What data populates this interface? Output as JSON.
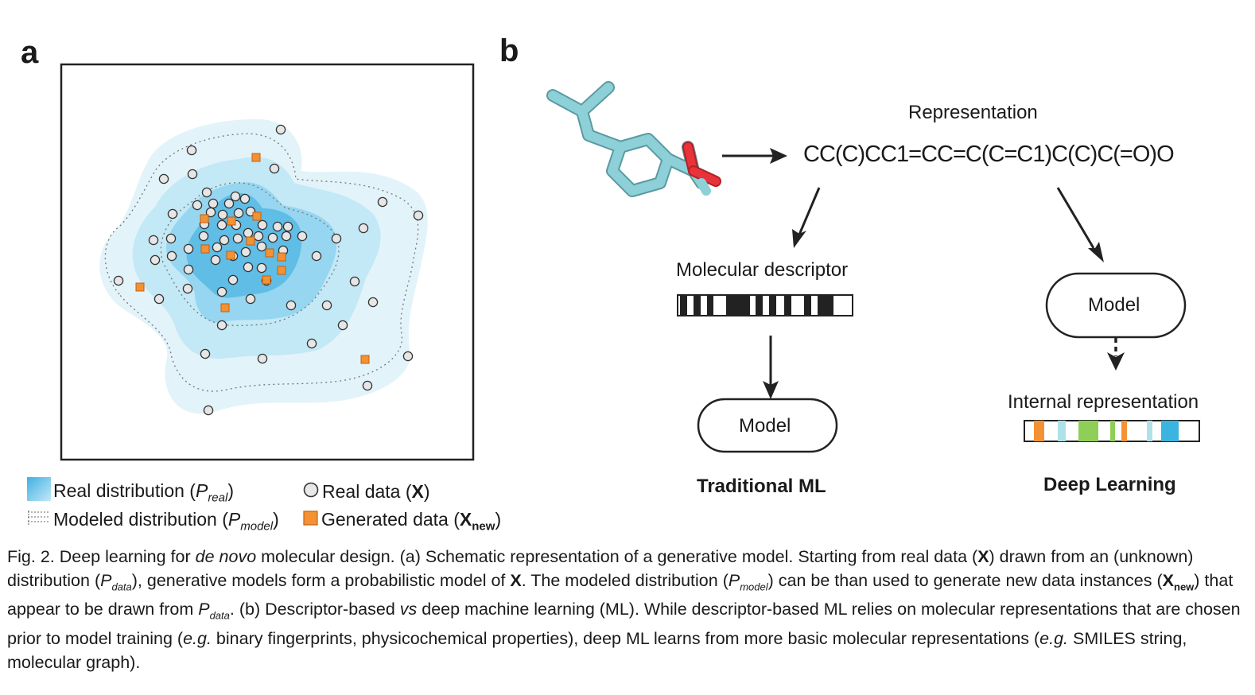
{
  "panel_a": {
    "label": "a",
    "legend": {
      "real_dist": {
        "prefix": "Real distribution (",
        "var": "P",
        "sub": "real",
        "suffix": ")"
      },
      "real_data": {
        "prefix": "Real data (",
        "bold": "X",
        "suffix": ")"
      },
      "model_dist": {
        "prefix": "Modeled distribution (",
        "var": "P",
        "sub": "model",
        "suffix": ")"
      },
      "gen_data": {
        "prefix": "Generated data (",
        "bold": "X",
        "sub": "new",
        "suffix": ")"
      }
    },
    "colors": {
      "outer": "#e6f5fb",
      "mid": "#bfe6f4",
      "inner": "#8fd3ef",
      "core": "#5ebde6",
      "generated": "#f39234"
    }
  },
  "panel_b": {
    "label": "b",
    "representation": "Representation",
    "smiles": "CC(C)CC1=CC=C(C=C1)C(C)C(=O)O",
    "molecular_descriptor": "Molecular descriptor",
    "model_left": "Model",
    "model_right": "Model",
    "internal_representation": "Internal representation",
    "traditional_ml": "Traditional ML",
    "deep_learning": "Deep Learning",
    "colors": {
      "molecule": "#8ed0d8",
      "oxygen": "#e8333b",
      "fingerprint": "#222222"
    },
    "internal_colors": [
      "#f39234",
      "#aee2e8",
      "#8fcf57",
      "#f39234",
      "#aee2e8",
      "#3cb4e0"
    ]
  },
  "caption": {
    "s1": "Fig. 2. Deep learning for ",
    "s1_italic": "de novo",
    "s2": " molecular design. (a) Schematic representation of a generative model. Starting from real data (",
    "s2_bold": "X",
    "s3": ") drawn from an (unknown) distribution (",
    "s3_var": "P",
    "s3_sub": "data",
    "s4": "), generative models form a probabilistic model of ",
    "s4_bold": "X",
    "s5": ". The modeled distribution (",
    "s5_var": "P",
    "s5_sub": "model",
    "s6": ") can be than used to generate new data instances (",
    "s6_bold": "X",
    "s6_sub": "new",
    "s7": ") that appear to be drawn from ",
    "s7_var": "P",
    "s7_sub": "data",
    "s8": ". (b) Descriptor-based ",
    "s8_italic": "vs",
    "s9": " deep machine learning (ML). While descriptor-based ML relies on molecular representations that are chosen prior to model training (",
    "s9_italic": "e.g.",
    "s10": " binary fingerprints, physicochemical properties), deep ML learns from more basic molecular representations (",
    "s10_italic": "e.g.",
    "s11": " SMILES string, molecular graph)."
  }
}
